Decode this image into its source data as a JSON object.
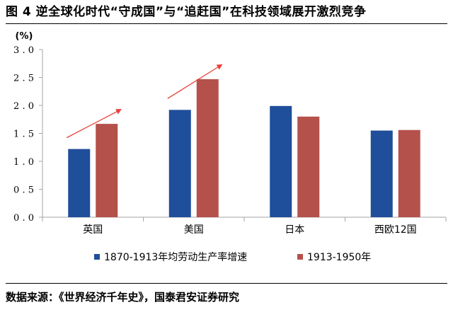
{
  "figure": {
    "title": "图 4 逆全球化时代“守成国”与“追赶国”在科技领域展开激烈竞争",
    "source": "数据来源：《世界经济千年史》，国泰君安证券研究"
  },
  "chart_data": {
    "type": "bar",
    "title": "",
    "xlabel": "",
    "ylabel": "(%)",
    "categories": [
      "英国",
      "美国",
      "日本",
      "西欧12国"
    ],
    "series": [
      {
        "name": "1870-1913年均劳动生产率增速",
        "values": [
          1.22,
          1.92,
          1.99,
          1.55
        ]
      },
      {
        "name": "1913-1950年",
        "values": [
          1.67,
          2.47,
          1.8,
          1.56
        ]
      }
    ],
    "ylim": [
      0,
      3.0
    ],
    "yticks": [
      "0.0",
      "0.5",
      "1.0",
      "1.5",
      "2.0",
      "2.5",
      "3.0"
    ],
    "grid": false,
    "legend_position": "bottom",
    "colors": {
      "series1": "#1f4e9a",
      "series2": "#b5514b",
      "arrow": "#e8413a",
      "axis": "#a6a6a6"
    },
    "annotations": [
      {
        "type": "arrow",
        "category": "英国"
      },
      {
        "type": "arrow",
        "category": "美国"
      }
    ]
  }
}
